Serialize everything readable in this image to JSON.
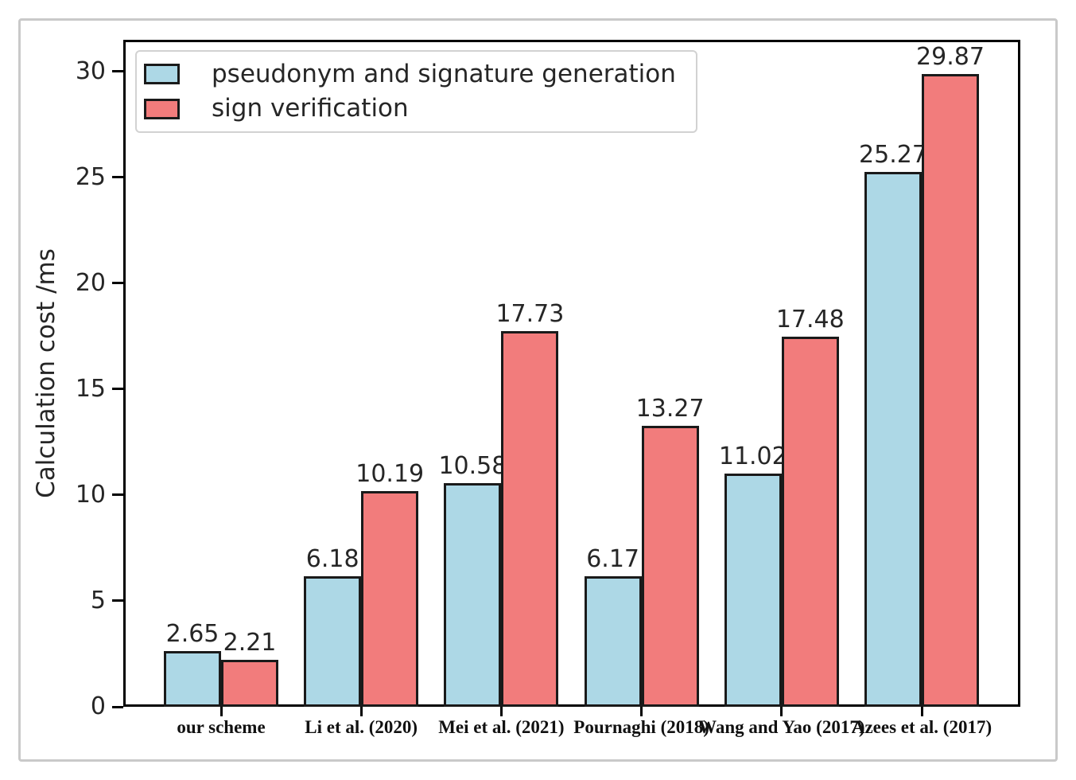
{
  "chart_data": {
    "type": "bar",
    "title": "",
    "xlabel": "",
    "ylabel": "Calculation cost /ms",
    "categories": [
      "our scheme",
      "Li et al. (2020)",
      "Mei et al. (2021)",
      "Pournaghi (2018)",
      "Wang and Yao (2017)",
      "Azees et al. (2017)"
    ],
    "series": [
      {
        "name": "pseudonym and signature generation",
        "color": "#ADD8E6",
        "values": [
          2.65,
          6.18,
          10.58,
          6.17,
          11.02,
          25.27
        ],
        "value_labels": [
          "2.65",
          "6.18",
          "10.58",
          "6.17",
          "11.02",
          "25.27"
        ]
      },
      {
        "name": "sign verification",
        "color": "#F27C7C",
        "values": [
          2.21,
          10.19,
          17.73,
          13.27,
          17.48,
          29.87
        ],
        "value_labels": [
          "2.21",
          "10.19",
          "17.73",
          "13.27",
          "17.48",
          "29.87"
        ]
      }
    ],
    "yticks": [
      0,
      5,
      10,
      15,
      20,
      25,
      30
    ],
    "ytick_labels": [
      "0",
      "5",
      "10",
      "15",
      "20",
      "25",
      "30"
    ],
    "ylim": [
      0,
      31.5
    ],
    "grid": false,
    "legend_position": "upper left",
    "bar_edge_color": "#1a1a1a",
    "axis_color": "#000000"
  }
}
